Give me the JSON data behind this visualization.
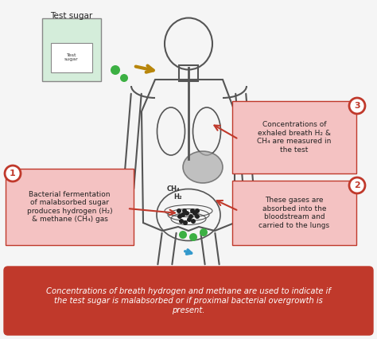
{
  "bg_color": "#f5f5f5",
  "title_box_color": "#c0392b",
  "title_text_color": "#ffffff",
  "title_text": "Concentrations of breath hydrogen and methane are used to indicate if\nthe test sugar is malabsorbed or if proximal bacterial overgrowth is\npresent.",
  "annotation_box_color": "#f4c2c2",
  "annotation_border_color": "#c0392b",
  "circle_color": "#c0392b",
  "circle_text_color": "#ffffff",
  "label1_text": "Bacterial fermentation\nof malabsorbed sugar\nproduces hydrogen (H₂)\n& methane (CH₄) gas",
  "label2_text": "These gases are\nabsorbed into the\nbloodstream and\ncarried to the lungs",
  "label3_text": "Concentrations of\nexhaled breath H₂ &\nCH₄ are measured in\nthe test",
  "test_sugar_label": "Test sugar",
  "body_color": "#f0f0f0",
  "body_line_color": "#555555",
  "green_dot_color": "#3cb043",
  "black_dot_color": "#222222",
  "blue_arrow_color": "#3399cc",
  "tan_arrow_color": "#b8860b",
  "organ_color": "#aaaaaa"
}
